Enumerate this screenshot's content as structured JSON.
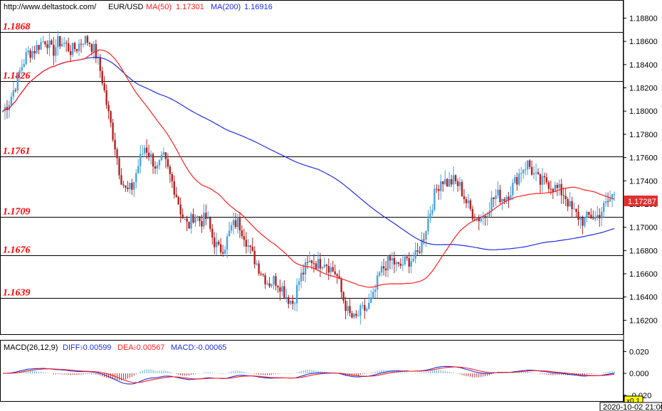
{
  "header": {
    "site": "http://www.deltastock.com/",
    "symbol": "EUR/USD",
    "ma50_label": "MA(50)",
    "ma50_value": "1.17301",
    "ma200_label": "MA(200)",
    "ma200_value": "1.16916"
  },
  "macd_header": {
    "title": "MACD(26,12,9)",
    "diff_label": "DIFF:",
    "diff_value": "-0.00599",
    "dea_label": "DEA:",
    "dea_value": "-0.00567",
    "macd_label": "MACD:",
    "macd_value": "-0.00065"
  },
  "current_price": "1.17287",
  "macd_zoom": "x0.1",
  "timestamp": "2020-10-02 21:00",
  "colors": {
    "bull": "#4aa3df",
    "bear": "#b22222",
    "ma50": "#ff2020",
    "ma200": "#1f2fe0",
    "level_text": "#ff0000",
    "price_tag": "#e03030"
  },
  "chart_data": {
    "type": "candlestick",
    "symbol": "EUR/USD",
    "ylim": [
      1.1608,
      1.1895
    ],
    "y_ticks": [
      "1.18800",
      "1.18600",
      "1.18400",
      "1.18200",
      "1.18000",
      "1.17800",
      "1.17600",
      "1.17400",
      "1.17200",
      "1.17000",
      "1.16800",
      "1.16600",
      "1.16400",
      "1.16200"
    ],
    "levels": [
      "1.1868",
      "1.1826",
      "1.1761",
      "1.1709",
      "1.1676",
      "1.1639"
    ],
    "close_path": [
      1.18,
      1.1808,
      1.1822,
      1.1838,
      1.185,
      1.1852,
      1.1858,
      1.1862,
      1.185,
      1.186,
      1.1858,
      1.1852,
      1.1855,
      1.1862,
      1.186,
      1.185,
      1.183,
      1.18,
      1.1775,
      1.1745,
      1.173,
      1.1735,
      1.1755,
      1.177,
      1.176,
      1.175,
      1.176,
      1.1745,
      1.173,
      1.171,
      1.17,
      1.1712,
      1.1705,
      1.1708,
      1.169,
      1.168,
      1.1685,
      1.17,
      1.1705,
      1.1695,
      1.168,
      1.167,
      1.166,
      1.1652,
      1.1655,
      1.165,
      1.164,
      1.1635,
      1.1655,
      1.1665,
      1.1672,
      1.1668,
      1.1672,
      1.1665,
      1.166,
      1.164,
      1.1625,
      1.162,
      1.1628,
      1.163,
      1.164,
      1.166,
      1.1668,
      1.1672,
      1.1665,
      1.167,
      1.1672,
      1.1675,
      1.169,
      1.171,
      1.173,
      1.1742,
      1.1738,
      1.174,
      1.1735,
      1.1722,
      1.1712,
      1.1708,
      1.171,
      1.1722,
      1.1728,
      1.1725,
      1.173,
      1.174,
      1.175,
      1.1755,
      1.1745,
      1.1738,
      1.174,
      1.1735,
      1.1732,
      1.1728,
      1.1715,
      1.171,
      1.1705,
      1.171,
      1.1708,
      1.1715,
      1.1722,
      1.173
    ],
    "ma50": "red moving average",
    "ma200": "blue moving average",
    "macd": {
      "ylim": [
        -0.026,
        0.03
      ],
      "y_ticks": [
        "0.020",
        "0.000",
        "-0.020"
      ]
    }
  }
}
